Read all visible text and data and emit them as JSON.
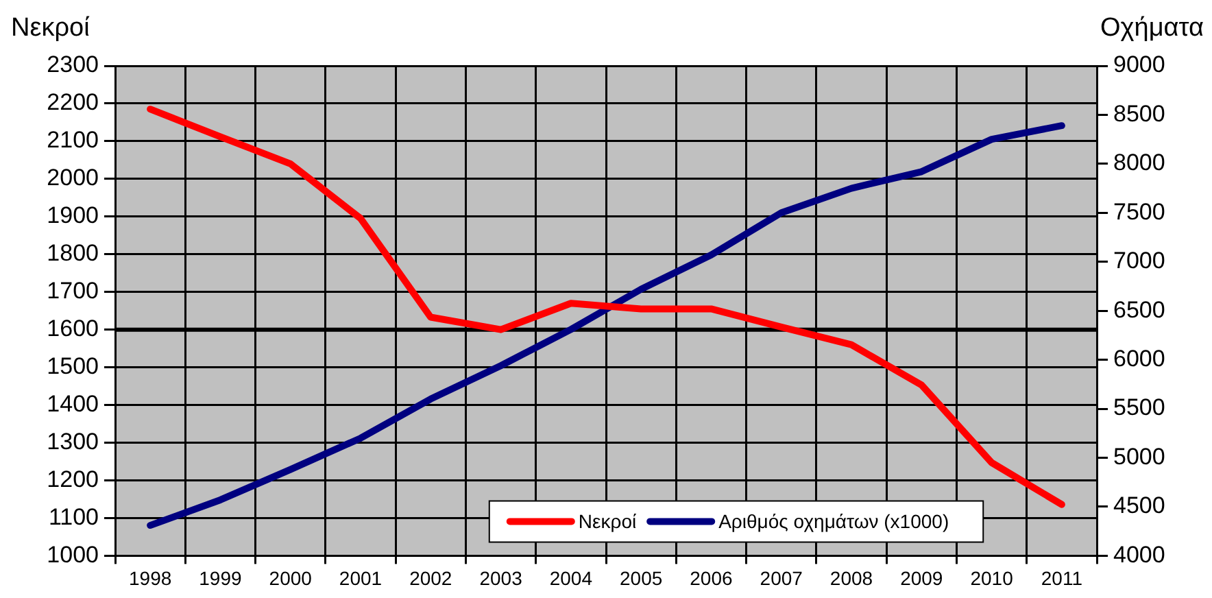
{
  "chart_data": {
    "type": "line",
    "ylabel": "Νεκροί",
    "y2label": "Οχήματα",
    "categories": [
      "1998",
      "1999",
      "2000",
      "2001",
      "2002",
      "2003",
      "2004",
      "2005",
      "2006",
      "2007",
      "2008",
      "2009",
      "2010",
      "2011"
    ],
    "series": [
      {
        "name": "Νεκροί",
        "color": "#ff0000",
        "values": [
          2185,
          2112,
          2040,
          1895,
          1633,
          1600,
          1670,
          1655,
          1655,
          1607,
          1560,
          1453,
          1247,
          1136
        ]
      },
      {
        "name": "Αριθμός οχημάτων (x1000)",
        "color": "#000080",
        "axis": "y2",
        "values": [
          4310,
          4570,
          4880,
          5200,
          5600,
          5940,
          6310,
          6720,
          7070,
          7500,
          7750,
          7920,
          8250,
          8390
        ]
      }
    ],
    "ylim": [
      1000,
      2300
    ],
    "yticks": [
      1000,
      1100,
      1200,
      1300,
      1400,
      1500,
      1600,
      1700,
      1800,
      1900,
      2000,
      2100,
      2200,
      2300
    ],
    "y2lim": [
      4000,
      9000
    ],
    "y2ticks": [
      4000,
      4500,
      5000,
      5500,
      6000,
      6500,
      7000,
      7500,
      8000,
      8500,
      9000
    ],
    "ref_lines": [
      {
        "axis": "y",
        "value": 1600,
        "color": "#000000"
      }
    ],
    "grid": true,
    "legend": "bottom",
    "marker": "none",
    "line_style": "solid"
  }
}
